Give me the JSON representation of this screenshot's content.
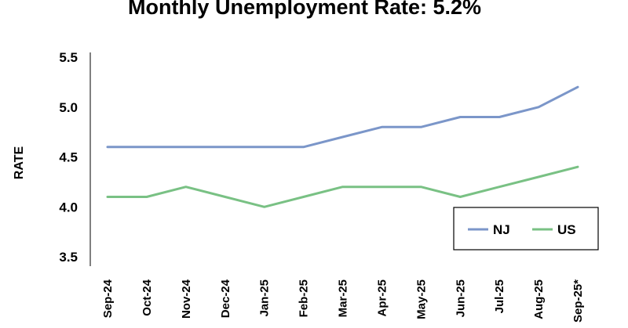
{
  "chart_data": {
    "type": "line",
    "title": "Monthly Unemployment Rate: 5.2%",
    "ylabel": "RATE",
    "xlabel": "",
    "ylim": [
      3.5,
      5.5
    ],
    "yticks": [
      "3.5",
      "4.0",
      "4.5",
      "5.0",
      "5.5"
    ],
    "categories": [
      "Sep-24",
      "Oct-24",
      "Nov-24",
      "Dec-24",
      "Jan-25",
      "Feb-25",
      "Mar-25",
      "Apr-25",
      "May-25",
      "Jun-25",
      "Jul-25",
      "Aug-25",
      "Sep-25*"
    ],
    "series": [
      {
        "name": "NJ",
        "color": "#7b96c9",
        "values": [
          4.6,
          4.6,
          4.6,
          4.6,
          4.6,
          4.6,
          4.7,
          4.8,
          4.8,
          4.9,
          4.9,
          5.0,
          5.2
        ]
      },
      {
        "name": "US",
        "color": "#79c184",
        "values": [
          4.1,
          4.1,
          4.2,
          4.1,
          4.0,
          4.1,
          4.2,
          4.2,
          4.2,
          4.1,
          4.2,
          4.3,
          4.4
        ]
      }
    ],
    "grid": false,
    "legend": "bottom-right"
  }
}
